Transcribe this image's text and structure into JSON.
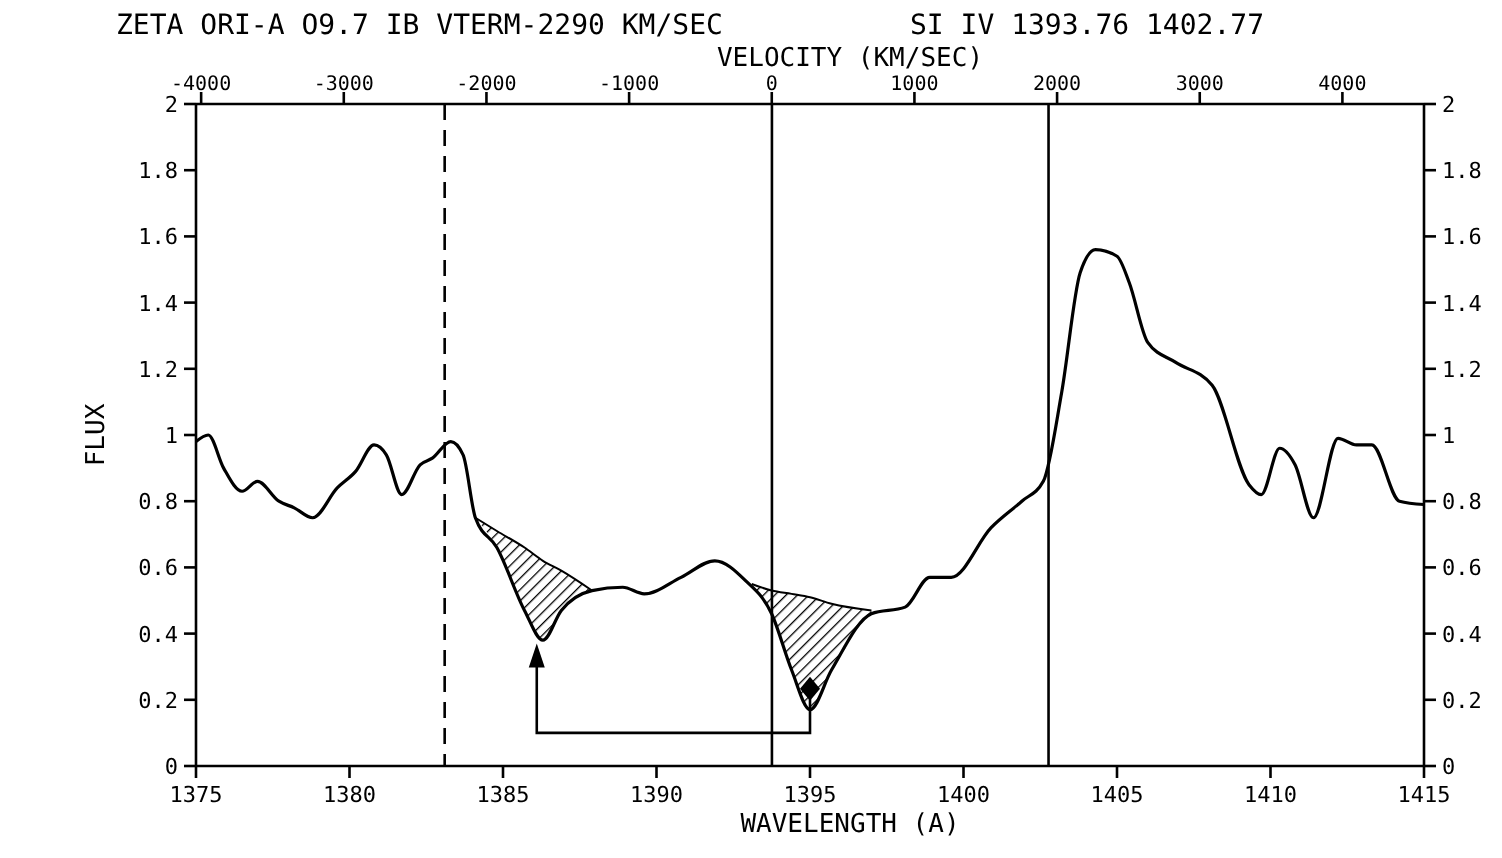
{
  "chart_data": {
    "type": "line",
    "title": "ZETA ORI-A   O9.7 IB   VTERM-2290 KM/SEC",
    "subtitle": "SI IV 1393.76   1402.77",
    "xlabel": "WAVELENGTH (A)",
    "ylabel": "FLUX",
    "x2label": "VELOCITY (KM/SEC)",
    "xlim": [
      1375,
      1415
    ],
    "xticks": [
      1375,
      1380,
      1385,
      1390,
      1395,
      1400,
      1405,
      1410,
      1415
    ],
    "x2lim": [
      -4036,
      4572
    ],
    "x2ticks": [
      -4000,
      -3000,
      -2000,
      -1000,
      0,
      1000,
      2000,
      3000,
      4000
    ],
    "ylim": [
      0,
      2
    ],
    "yticks": [
      0,
      0.2,
      0.4,
      0.6,
      0.8,
      1,
      1.2,
      1.4,
      1.6,
      1.8,
      2
    ],
    "y2lim": [
      0,
      2
    ],
    "y2ticks": [
      0,
      0.2,
      0.4,
      0.6,
      0.8,
      1,
      1.2,
      1.4,
      1.6,
      1.8,
      2
    ],
    "grid": false,
    "marker": "none",
    "line_style": "solid",
    "ref_lines": [
      {
        "axis": "x",
        "value": 1383.1,
        "color": "#000000",
        "line_style": "dashed"
      },
      {
        "axis": "x",
        "value": 1393.76,
        "color": "#000000",
        "line_style": "solid"
      },
      {
        "axis": "x",
        "value": 1402.77,
        "color": "#000000",
        "line_style": "solid"
      }
    ],
    "series": [
      {
        "color": "#000000",
        "x": [
          1375,
          1375.4,
          1375.9,
          1376.5,
          1377,
          1377.7,
          1378.2,
          1378.8,
          1379.6,
          1380.2,
          1380.8,
          1381.2,
          1381.7,
          1382.3,
          1382.7,
          1383.3,
          1383.7,
          1384.1,
          1384.8,
          1385.7,
          1386.3,
          1386.9,
          1387.9,
          1388.9,
          1389.6,
          1390.8,
          1391.9,
          1392.9,
          1393.75,
          1394.4,
          1395,
          1395.7,
          1397,
          1398.1,
          1398.9,
          1399.6,
          1400.9,
          1401.9,
          1402.6,
          1403.2,
          1403.8,
          1404.3,
          1405,
          1405.4,
          1406,
          1406.9,
          1408.1,
          1409.3,
          1409.7,
          1410.3,
          1410.8,
          1411.4,
          1412.2,
          1412.8,
          1413.3,
          1414.2,
          1415
        ],
        "values": [
          0.98,
          1,
          0.9,
          0.83,
          0.86,
          0.8,
          0.78,
          0.75,
          0.84,
          0.89,
          0.97,
          0.94,
          0.82,
          0.91,
          0.93,
          0.98,
          0.94,
          0.75,
          0.66,
          0.47,
          0.38,
          0.47,
          0.53,
          0.54,
          0.52,
          0.57,
          0.62,
          0.56,
          0.46,
          0.29,
          0.17,
          0.29,
          0.46,
          0.48,
          0.57,
          0.57,
          0.72,
          0.8,
          0.86,
          1.13,
          1.49,
          1.56,
          1.54,
          1.46,
          1.28,
          1.22,
          1.15,
          0.85,
          0.82,
          0.96,
          0.91,
          0.75,
          0.99,
          0.97,
          0.97,
          0.8,
          0.79
        ]
      },
      {
        "type": "line",
        "color": "#000000",
        "x": [
          1384.1,
          1384.8,
          1385.7,
          1386.3,
          1386.9,
          1387.9
        ],
        "values": [
          0.75,
          0.71,
          0.66,
          0.62,
          0.59,
          0.53
        ],
        "lower": [
          0.75,
          0.66,
          0.47,
          0.38,
          0.47,
          0.53
        ],
        "upper": [
          0.75,
          0.71,
          0.66,
          0.62,
          0.59,
          0.53
        ]
      },
      {
        "type": "line",
        "color": "#000000",
        "x": [
          1393.1,
          1393.75,
          1394.4,
          1395,
          1395.7,
          1397
        ],
        "values": [
          0.55,
          0.53,
          0.52,
          0.51,
          0.49,
          0.47
        ],
        "lower": [
          0.55,
          0.46,
          0.29,
          0.17,
          0.29,
          0.46
        ],
        "upper": [
          0.55,
          0.53,
          0.52,
          0.51,
          0.49,
          0.47
        ]
      }
    ]
  }
}
